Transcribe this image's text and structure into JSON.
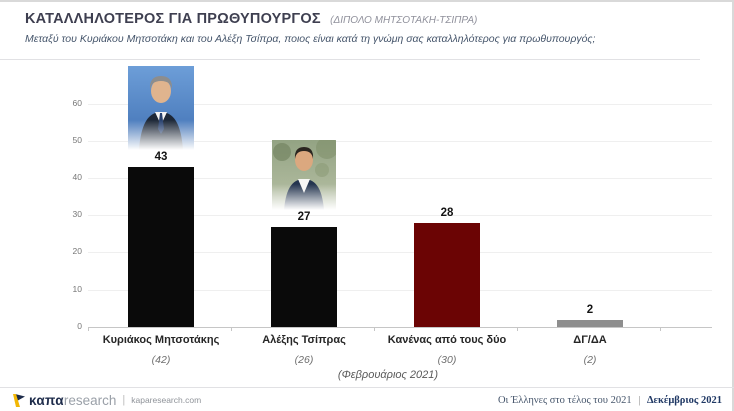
{
  "header": {
    "title": "ΚΑΤΑΛΛΗΛΟΤΕΡΟΣ ΓΙΑ ΠΡΩΘΥΠΟΥΡΓΟΣ",
    "title_suffix": "(ΔΙΠΟΛΟ ΜΗΤΣΟΤΑΚΗ-ΤΣΙΠΡΑ)",
    "subtitle": "Μεταξύ του Κυριάκου Μητσοτάκη και του Αλέξη Τσίπρα, ποιος είναι κατά τη γνώμη σας καταλληλότερος για πρωθυπουργός;"
  },
  "chart_data": {
    "type": "bar",
    "title": "ΚΑΤΑΛΛΗΛΟΤΕΡΟΣ ΓΙΑ ΠΡΩΘΥΠΟΥΡΓΟΣ (ΔΙΠΟΛΟ ΜΗΤΣΟΤΑΚΗ-ΤΣΙΠΡΑ)",
    "categories": [
      "Κυριάκος Μητσοτάκης",
      "Αλέξης Τσίπρας",
      "Κανένας από τους δύο",
      "ΔΓ/ΔΑ"
    ],
    "values": [
      43,
      27,
      28,
      2
    ],
    "previous_values": [
      "(42)",
      "(26)",
      "(30)",
      "(2)"
    ],
    "previous_wave_label": "(Φεβρουάριος 2021)",
    "bar_colors": [
      "#0a0a0a",
      "#0a0a0a",
      "#6b0404",
      "#8e8e8e"
    ],
    "ylim": [
      0,
      60
    ],
    "yticks": [
      0,
      10,
      20,
      30,
      40,
      50,
      60
    ],
    "grid": true,
    "photos": [
      "Κυριάκος Μητσοτάκης portrait",
      "Αλέξης Τσίπρας portrait"
    ]
  },
  "footer": {
    "logo_brand": "καπα",
    "logo_brand2": "research",
    "logo_divider": "|",
    "logo_domain": "kaparesearch.com",
    "right_title": "Οι Έλληνες στο τέλος του 2021",
    "right_divider": "|",
    "right_date": "Δεκέμβριος 2021"
  }
}
